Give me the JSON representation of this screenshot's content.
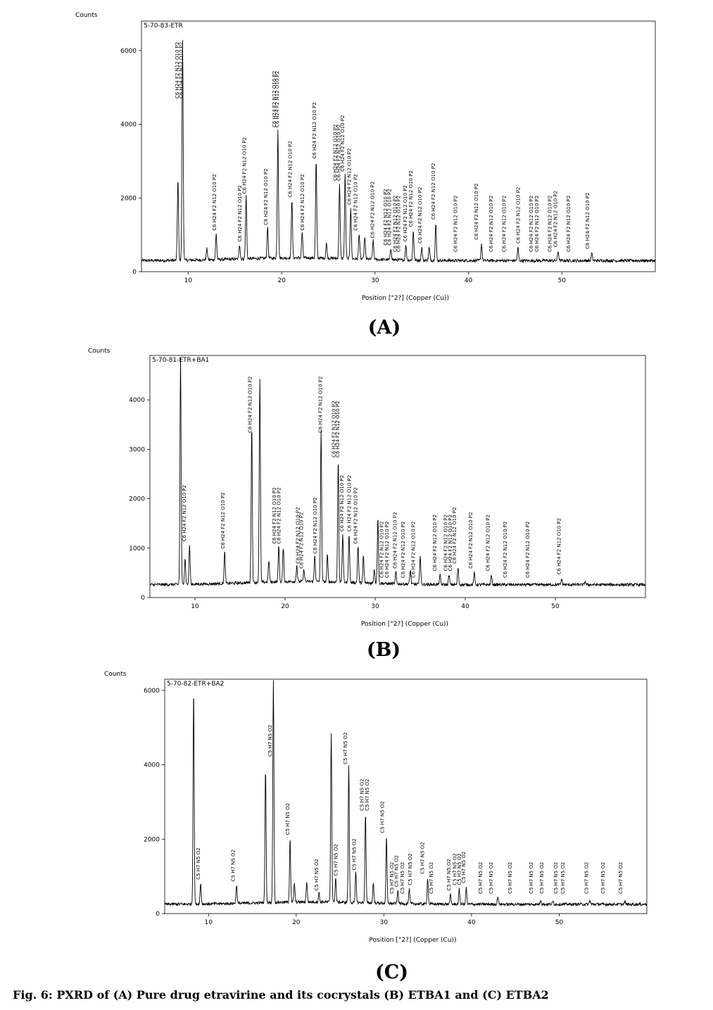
{
  "caption": "Fig. 6: PXRD of (A) Pure drug etravirine and its cocrystals (B) ETBA1 and (C) ETBA2",
  "chart_data": [
    {
      "type": "line",
      "panel": "(A)",
      "sample": "5-70-83-ETR",
      "ylabel": "Counts",
      "xlabel": "Position [°2?] (Copper (Cu))",
      "xlim": [
        5,
        60
      ],
      "ylim": [
        0,
        6800
      ],
      "xticks": [
        10,
        20,
        30,
        40,
        50
      ],
      "yticks": [
        0,
        2000,
        4000,
        6000
      ],
      "baseline": 300,
      "peaks": [
        {
          "x": 8.9,
          "y": 2500
        },
        {
          "x": 9.4,
          "y": 6300
        },
        {
          "x": 12.0,
          "y": 600
        },
        {
          "x": 13.0,
          "y": 1000
        },
        {
          "x": 15.5,
          "y": 700
        },
        {
          "x": 16.2,
          "y": 2000
        },
        {
          "x": 18.5,
          "y": 1150
        },
        {
          "x": 19.6,
          "y": 3800
        },
        {
          "x": 21.1,
          "y": 1900
        },
        {
          "x": 22.2,
          "y": 1000
        },
        {
          "x": 23.7,
          "y": 2950
        },
        {
          "x": 24.8,
          "y": 700
        },
        {
          "x": 26.2,
          "y": 2350
        },
        {
          "x": 26.8,
          "y": 2600
        },
        {
          "x": 27.4,
          "y": 1700
        },
        {
          "x": 28.3,
          "y": 1000
        },
        {
          "x": 28.9,
          "y": 900
        },
        {
          "x": 29.8,
          "y": 800
        },
        {
          "x": 31.7,
          "y": 600
        },
        {
          "x": 33.3,
          "y": 700
        },
        {
          "x": 34.1,
          "y": 1100
        },
        {
          "x": 35.0,
          "y": 650
        },
        {
          "x": 35.8,
          "y": 650
        },
        {
          "x": 36.5,
          "y": 1300
        },
        {
          "x": 41.4,
          "y": 750
        },
        {
          "x": 45.3,
          "y": 650
        },
        {
          "x": 49.6,
          "y": 550
        },
        {
          "x": 53.2,
          "y": 500
        }
      ],
      "annotations": [
        {
          "x": 9.0,
          "text": "C6 H24 F2 N12 O10 P2"
        },
        {
          "x": 9.4,
          "text": "C6 H24 F2 N12 O10 P2"
        },
        {
          "x": 13.0,
          "text": "C6 H24 F2 N12 O10 P2"
        },
        {
          "x": 15.7,
          "text": "C6 H24 F2 N12 O10 P2"
        },
        {
          "x": 16.2,
          "text": "C6 H24 F2 N12 O10 P2"
        },
        {
          "x": 18.5,
          "text": "C6 H24 F2 N12 O10 P2"
        },
        {
          "x": 19.4,
          "text": "C6 H24 F2 N12 O10 P2"
        },
        {
          "x": 19.7,
          "text": "C6 H24 F2 N12 O10 P2"
        },
        {
          "x": 21.1,
          "text": "C6 H24 F2 N12 O10 P2"
        },
        {
          "x": 22.4,
          "text": "C6 H24 F2 N12 O10 P2"
        },
        {
          "x": 23.7,
          "text": "C6 H24 F2 N12 O10 P2"
        },
        {
          "x": 25.9,
          "text": "C6 H24 F2 N12 O10 P2"
        },
        {
          "x": 26.3,
          "text": "C6 H24 F2 N12 O10 P2"
        },
        {
          "x": 26.7,
          "text": "C6 H24 F2 N12 O10 P2"
        },
        {
          "x": 27.4,
          "text": "C6 H24 F2 N12 O10 P2"
        },
        {
          "x": 28.1,
          "text": "C6 H24 F2 N12 O10 P2"
        },
        {
          "x": 29.9,
          "text": "C6 H24 F2 N12 O10 P2"
        },
        {
          "x": 31.3,
          "text": "C6 H24 F2 N12 O10 P2"
        },
        {
          "x": 31.7,
          "text": "C6 H24 F2 N12 O10 P2"
        },
        {
          "x": 32.3,
          "text": "C6 H24 F2 N12 O10 P2"
        },
        {
          "x": 32.7,
          "text": "C6 H24 F2 N12 O10 P2"
        },
        {
          "x": 33.4,
          "text": "C6 H24 F2 N12 O10 P2"
        },
        {
          "x": 34.0,
          "text": "C6 H24 F2 N12 O10 P2"
        },
        {
          "x": 35.0,
          "text": "C6 H24 F2 N12 O10 P2"
        },
        {
          "x": 36.4,
          "text": "C6 H24 F2 N12 O10 P2"
        },
        {
          "x": 38.8,
          "text": "C6 H24 F2 N12 O10 P2"
        },
        {
          "x": 41.0,
          "text": "C6 H24 F2 N12 O10 P2"
        },
        {
          "x": 42.6,
          "text": "C6 H24 F2 N12 O10 P2"
        },
        {
          "x": 44.0,
          "text": "C6 H24 F2 N12 O10 P2"
        },
        {
          "x": 45.5,
          "text": "C6 H24 F2 N12 O10 P2"
        },
        {
          "x": 46.9,
          "text": "C6 H24 F2 N12 O10 P2"
        },
        {
          "x": 47.5,
          "text": "C6 H24 F2 N12 O10 P2"
        },
        {
          "x": 48.9,
          "text": "C6 H24 F2 N12 O10 P2"
        },
        {
          "x": 49.5,
          "text": "C6 H24 F2 N12 O10 P2"
        },
        {
          "x": 50.9,
          "text": "C6 H24 F2 N12 O10 P2"
        },
        {
          "x": 52.9,
          "text": "C6 H24 F2 N12 O10 P2"
        }
      ]
    },
    {
      "type": "line",
      "panel": "(B)",
      "sample": "5-70-81-ETR+BA1",
      "ylabel": "Counts",
      "xlabel": "Position [°2?] (Copper (Cu))",
      "xlim": [
        5,
        60
      ],
      "ylim": [
        0,
        4900
      ],
      "xticks": [
        10,
        20,
        30,
        40,
        50
      ],
      "yticks": [
        0,
        1000,
        2000,
        3000,
        4000
      ],
      "baseline": 260,
      "peaks": [
        {
          "x": 8.4,
          "y": 4850
        },
        {
          "x": 8.9,
          "y": 800
        },
        {
          "x": 9.4,
          "y": 1050
        },
        {
          "x": 13.3,
          "y": 900
        },
        {
          "x": 16.3,
          "y": 3450
        },
        {
          "x": 17.2,
          "y": 4350
        },
        {
          "x": 18.2,
          "y": 700
        },
        {
          "x": 19.3,
          "y": 1000
        },
        {
          "x": 19.8,
          "y": 950
        },
        {
          "x": 21.3,
          "y": 600
        },
        {
          "x": 22.1,
          "y": 500
        },
        {
          "x": 23.3,
          "y": 800
        },
        {
          "x": 24.0,
          "y": 3350
        },
        {
          "x": 24.7,
          "y": 800
        },
        {
          "x": 25.9,
          "y": 2750
        },
        {
          "x": 26.4,
          "y": 1250
        },
        {
          "x": 27.1,
          "y": 1250
        },
        {
          "x": 28.1,
          "y": 1000
        },
        {
          "x": 28.7,
          "y": 800
        },
        {
          "x": 29.9,
          "y": 550
        },
        {
          "x": 30.3,
          "y": 1600
        },
        {
          "x": 32.3,
          "y": 500
        },
        {
          "x": 33.9,
          "y": 550
        },
        {
          "x": 35.0,
          "y": 850
        },
        {
          "x": 37.2,
          "y": 450
        },
        {
          "x": 38.2,
          "y": 450
        },
        {
          "x": 39.2,
          "y": 600
        },
        {
          "x": 41.0,
          "y": 500
        },
        {
          "x": 42.9,
          "y": 450
        },
        {
          "x": 50.7,
          "y": 380
        },
        {
          "x": 53.3,
          "y": 330
        }
      ],
      "annotations": [
        {
          "x": 9.0,
          "text": "C6 H24 F2 N12 O10 P2"
        },
        {
          "x": 13.3,
          "text": "C6 H24 F2 N12 O10 P2"
        },
        {
          "x": 16.3,
          "text": "C6 H24 F2 N12 O10 P2"
        },
        {
          "x": 19.0,
          "text": "C6 H24 F2 N12 O10 P2"
        },
        {
          "x": 19.5,
          "text": "C6 H24 F2 N12 O10 P2"
        },
        {
          "x": 21.6,
          "text": "C6 H24 F2 N12 O10 P2"
        },
        {
          "x": 22.0,
          "text": "C6 H24 F2 N12 O10 P2"
        },
        {
          "x": 23.5,
          "text": "C6 H24 F2 N12 O10 P2"
        },
        {
          "x": 24.1,
          "text": "C6 H24 F2 N12 O10 P2"
        },
        {
          "x": 25.6,
          "text": "C6 H24 F2 N12 O10 P2"
        },
        {
          "x": 26.0,
          "text": "C6 H24 F2 N12 O10 P2"
        },
        {
          "x": 26.5,
          "text": "C6 H24 F2 N12 O10 P2"
        },
        {
          "x": 27.3,
          "text": "C6 H24 F2 N12 O10 P2"
        },
        {
          "x": 28.0,
          "text": "C6 H24 F2 N12 O10 P2"
        },
        {
          "x": 30.9,
          "text": "C6 H24 F2 N12 O10 P2"
        },
        {
          "x": 31.5,
          "text": "C6 H24 F2 N12 O10 P2"
        },
        {
          "x": 32.4,
          "text": "C6 H24 F2 N12 O10 P2"
        },
        {
          "x": 33.3,
          "text": "C6 H24 F2 N12 O10 P2"
        },
        {
          "x": 34.4,
          "text": "C6 H24 F2 N12 O10 P2"
        },
        {
          "x": 36.8,
          "text": "C6 H24 F2 N12 O10 P2"
        },
        {
          "x": 38.0,
          "text": "C6 H24 F2 N12 O10 P2"
        },
        {
          "x": 38.5,
          "text": "C6 H24 F2 N12 O10 P2"
        },
        {
          "x": 39.0,
          "text": "C6 H24 F2 N12 O10 P2"
        },
        {
          "x": 40.8,
          "text": "C6 H24 F2 N12 O10 P2"
        },
        {
          "x": 42.7,
          "text": "C6 H24 F2 N12 O10 P2"
        },
        {
          "x": 44.6,
          "text": "C6 H24 F2 N12 O10 P2"
        },
        {
          "x": 47.1,
          "text": "C6 H24 F2 N12 O10 P2"
        },
        {
          "x": 50.6,
          "text": "C6 H24 F2 N12 O10 P2"
        }
      ]
    },
    {
      "type": "line",
      "panel": "(C)",
      "sample": "5-70-82-ETR+BA2",
      "ylabel": "Counts",
      "xlabel": "Position [°2?] (Copper (Cu))",
      "xlim": [
        5,
        60
      ],
      "ylim": [
        0,
        6300
      ],
      "xticks": [
        10,
        20,
        30,
        40,
        50
      ],
      "yticks": [
        0,
        2000,
        4000,
        6000
      ],
      "baseline": 250,
      "peaks": [
        {
          "x": 8.3,
          "y": 6050
        },
        {
          "x": 9.1,
          "y": 800
        },
        {
          "x": 13.2,
          "y": 750
        },
        {
          "x": 16.5,
          "y": 3850
        },
        {
          "x": 17.4,
          "y": 6250
        },
        {
          "x": 19.3,
          "y": 2000
        },
        {
          "x": 19.8,
          "y": 750
        },
        {
          "x": 21.2,
          "y": 800
        },
        {
          "x": 22.6,
          "y": 500
        },
        {
          "x": 24.0,
          "y": 4800
        },
        {
          "x": 24.5,
          "y": 900
        },
        {
          "x": 26.0,
          "y": 3900
        },
        {
          "x": 26.8,
          "y": 1050
        },
        {
          "x": 27.9,
          "y": 2650
        },
        {
          "x": 28.8,
          "y": 800
        },
        {
          "x": 30.3,
          "y": 2050
        },
        {
          "x": 31.6,
          "y": 600
        },
        {
          "x": 32.9,
          "y": 650
        },
        {
          "x": 35.0,
          "y": 950
        },
        {
          "x": 37.6,
          "y": 500
        },
        {
          "x": 38.6,
          "y": 650
        },
        {
          "x": 39.4,
          "y": 700
        },
        {
          "x": 43.0,
          "y": 450
        },
        {
          "x": 47.9,
          "y": 380
        },
        {
          "x": 49.3,
          "y": 330
        },
        {
          "x": 53.5,
          "y": 350
        },
        {
          "x": 57.5,
          "y": 320
        }
      ],
      "annotations": [
        {
          "x": 9.0,
          "text": "C5 H7 N5 O2"
        },
        {
          "x": 13.0,
          "text": "C5 H7 N5 O2"
        },
        {
          "x": 17.2,
          "text": "C5 H7 N5 O2"
        },
        {
          "x": 19.2,
          "text": "C5 H7 N5 O2"
        },
        {
          "x": 22.5,
          "text": "C5 H7 N5 O2"
        },
        {
          "x": 24.7,
          "text": "C5 H7 N5 O2"
        },
        {
          "x": 25.8,
          "text": "C5 H7 N5 O2"
        },
        {
          "x": 26.8,
          "text": "C5 H7 N5 O2"
        },
        {
          "x": 27.7,
          "text": "C5 H7 N5 O2"
        },
        {
          "x": 28.3,
          "text": "C5 H7 N5 O2"
        },
        {
          "x": 30.0,
          "text": "C5 H7 N5 O2"
        },
        {
          "x": 31.1,
          "text": "C5 H7 N5 O2"
        },
        {
          "x": 31.6,
          "text": "C5 H7 N5 O2"
        },
        {
          "x": 32.3,
          "text": "C5 H7 N5 O2"
        },
        {
          "x": 33.2,
          "text": "C5 H7 N5 O2"
        },
        {
          "x": 34.6,
          "text": "C5 H7 N5 O2"
        },
        {
          "x": 35.6,
          "text": "C5 H7 N5 O2"
        },
        {
          "x": 37.6,
          "text": "C5 H7 N5 O2"
        },
        {
          "x": 38.3,
          "text": "C5 H7 N5 O2"
        },
        {
          "x": 38.8,
          "text": "C5 H7 N5 O2"
        },
        {
          "x": 39.3,
          "text": "C5 H7 N5 O2"
        },
        {
          "x": 41.2,
          "text": "C5 H7 N5 O2"
        },
        {
          "x": 42.4,
          "text": "C5 H7 N5 O2"
        },
        {
          "x": 44.6,
          "text": "C5 H7 N5 O2"
        },
        {
          "x": 47.0,
          "text": "C5 H7 N5 O2"
        },
        {
          "x": 48.2,
          "text": "C5 H7 N5 O2"
        },
        {
          "x": 49.8,
          "text": "C5 H7 N5 O2"
        },
        {
          "x": 50.6,
          "text": "C5 H7 N5 O2"
        },
        {
          "x": 53.3,
          "text": "C5 H7 N5 O2"
        },
        {
          "x": 55.2,
          "text": "C5 H7 N5 O2"
        },
        {
          "x": 57.2,
          "text": "C5 H7 N5 O2"
        }
      ]
    }
  ]
}
